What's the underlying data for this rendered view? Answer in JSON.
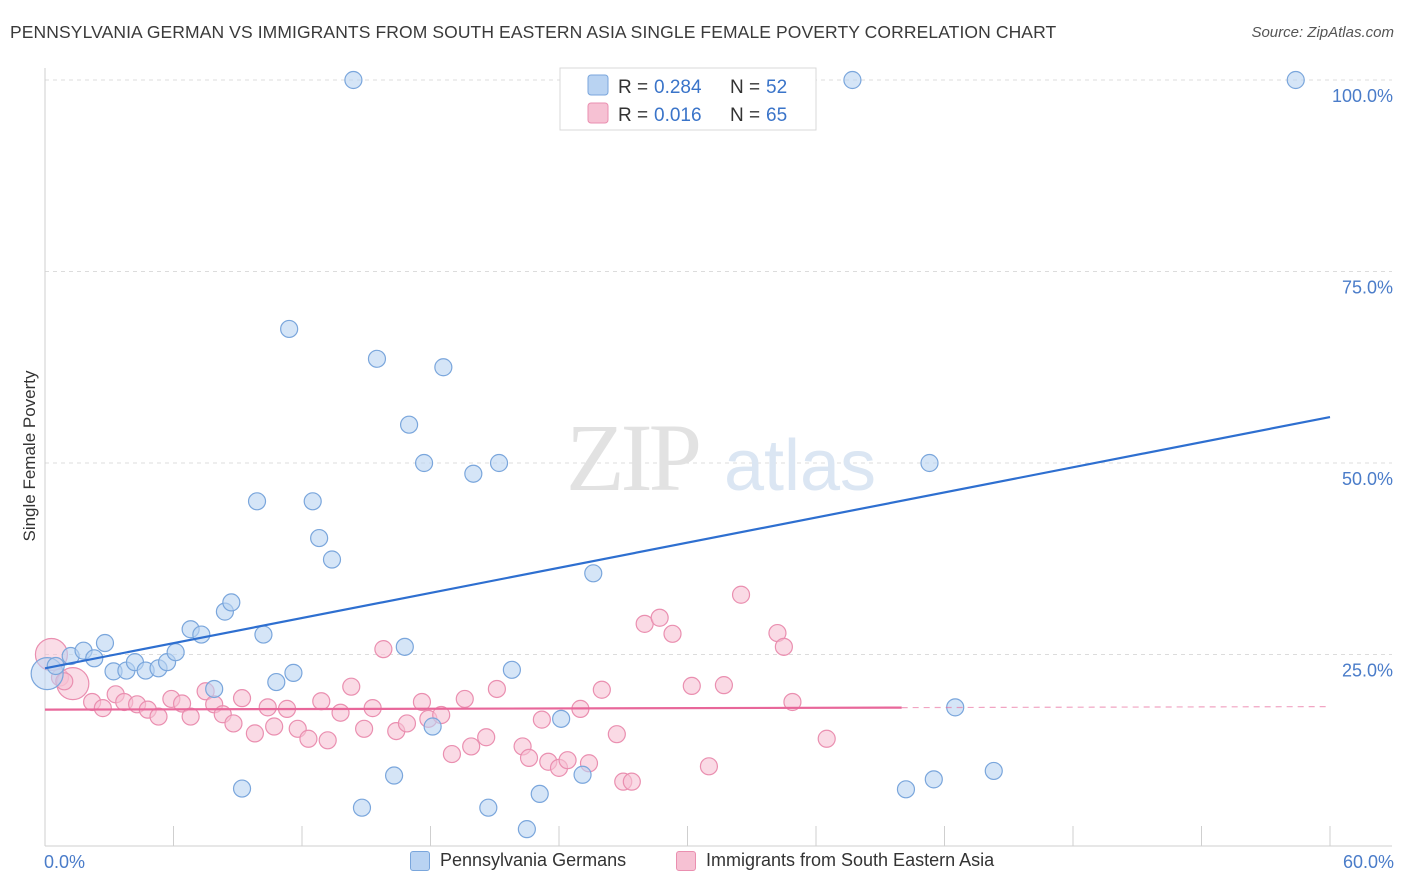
{
  "header": {
    "title": "PENNSYLVANIA GERMAN VS IMMIGRANTS FROM SOUTH EASTERN ASIA SINGLE FEMALE POVERTY CORRELATION CHART",
    "source": "Source: ZipAtlas.com"
  },
  "watermark": {
    "zip": "ZIP",
    "atlas": "atlas"
  },
  "legend": {
    "items": [
      {
        "r_label": "R = ",
        "r_value": "0.284",
        "n_label": "N = ",
        "n_value": "52"
      },
      {
        "r_label": "R = ",
        "r_value": "0.016",
        "n_label": "N = ",
        "n_value": "65"
      }
    ]
  },
  "colors": {
    "blue_fill": "#b9d3f2",
    "blue_stroke": "#7aa6dc",
    "blue_line": "#2e6fd0",
    "pink_fill": "#f6c1d3",
    "pink_stroke": "#ea8fb0",
    "pink_line": "#e8679a",
    "tick_text": "#4a7cc9"
  },
  "chart_data": {
    "type": "scatter",
    "title": "PENNSYLVANIA GERMAN VS IMMIGRANTS FROM SOUTH EASTERN ASIA SINGLE FEMALE POVERTY CORRELATION CHART",
    "xlabel": "",
    "ylabel": "Single Female Poverty",
    "xlim": [
      0,
      60
    ],
    "ylim": [
      0,
      100
    ],
    "x_tick_labels": [
      "0.0%",
      "60.0%"
    ],
    "y_ticks": [
      25,
      50,
      75,
      100
    ],
    "y_tick_labels": [
      "25.0%",
      "50.0%",
      "75.0%",
      "100.0%"
    ],
    "grid": true,
    "legend_placement": "top-center",
    "series": [
      {
        "name": "Pennsylvania Germans",
        "r": 0.284,
        "n": 52,
        "trend": {
          "x": [
            0,
            60
          ],
          "y": [
            23.2,
            56.0
          ],
          "dashed_from": null
        },
        "points": [
          [
            0.1,
            22.5
          ],
          [
            0.5,
            23.5
          ],
          [
            1.2,
            24.8
          ],
          [
            1.8,
            25.5
          ],
          [
            2.3,
            24.5
          ],
          [
            2.8,
            26.5
          ],
          [
            3.2,
            22.8
          ],
          [
            3.8,
            22.9
          ],
          [
            4.2,
            24.0
          ],
          [
            4.7,
            22.9
          ],
          [
            5.3,
            23.2
          ],
          [
            5.7,
            24.0
          ],
          [
            6.1,
            25.3
          ],
          [
            6.8,
            28.3
          ],
          [
            7.3,
            27.6
          ],
          [
            7.9,
            20.5
          ],
          [
            8.4,
            30.6
          ],
          [
            8.7,
            31.8
          ],
          [
            9.2,
            7.5
          ],
          [
            9.9,
            45.0
          ],
          [
            10.2,
            27.6
          ],
          [
            10.8,
            21.4
          ],
          [
            11.4,
            67.5
          ],
          [
            11.6,
            22.6
          ],
          [
            12.5,
            45.0
          ],
          [
            12.8,
            40.2
          ],
          [
            13.4,
            37.4
          ],
          [
            14.4,
            100.0
          ],
          [
            14.8,
            5.0
          ],
          [
            15.5,
            63.6
          ],
          [
            16.3,
            9.2
          ],
          [
            16.8,
            26.0
          ],
          [
            17.0,
            55.0
          ],
          [
            17.7,
            50.0
          ],
          [
            18.1,
            15.6
          ],
          [
            18.6,
            62.5
          ],
          [
            20.0,
            48.6
          ],
          [
            20.7,
            5.0
          ],
          [
            21.2,
            50.0
          ],
          [
            21.8,
            23.0
          ],
          [
            22.5,
            2.2
          ],
          [
            23.1,
            6.8
          ],
          [
            24.1,
            16.6
          ],
          [
            25.1,
            9.3
          ],
          [
            25.6,
            35.6
          ],
          [
            37.7,
            100.0
          ],
          [
            40.2,
            7.4
          ],
          [
            41.5,
            8.7
          ],
          [
            42.5,
            18.1
          ],
          [
            44.3,
            9.8
          ],
          [
            41.3,
            50.0
          ],
          [
            58.4,
            100.0
          ]
        ]
      },
      {
        "name": "Immigrants from South Eastern Asia",
        "r": 0.016,
        "n": 65,
        "trend": {
          "x": [
            0,
            60
          ],
          "y": [
            17.8,
            18.2
          ],
          "dashed_from": 40.0
        },
        "points": [
          [
            0.3,
            25.0
          ],
          [
            0.7,
            22.0
          ],
          [
            1.3,
            21.2
          ],
          [
            2.2,
            18.8
          ],
          [
            2.7,
            18.0
          ],
          [
            3.3,
            19.8
          ],
          [
            3.7,
            18.8
          ],
          [
            4.3,
            18.5
          ],
          [
            4.8,
            17.8
          ],
          [
            5.3,
            16.9
          ],
          [
            5.9,
            19.2
          ],
          [
            6.4,
            18.6
          ],
          [
            6.8,
            16.9
          ],
          [
            7.5,
            20.2
          ],
          [
            7.9,
            18.5
          ],
          [
            8.3,
            17.2
          ],
          [
            8.8,
            16.0
          ],
          [
            9.2,
            19.3
          ],
          [
            9.8,
            14.7
          ],
          [
            10.4,
            18.1
          ],
          [
            10.7,
            15.6
          ],
          [
            11.3,
            17.9
          ],
          [
            11.8,
            15.3
          ],
          [
            12.3,
            14.0
          ],
          [
            12.9,
            18.9
          ],
          [
            13.2,
            13.8
          ],
          [
            13.8,
            17.4
          ],
          [
            14.3,
            20.8
          ],
          [
            14.9,
            15.3
          ],
          [
            15.3,
            18.0
          ],
          [
            15.8,
            25.7
          ],
          [
            16.4,
            15.0
          ],
          [
            16.9,
            16.0
          ],
          [
            17.6,
            18.8
          ],
          [
            17.9,
            16.6
          ],
          [
            18.5,
            17.1
          ],
          [
            19.0,
            12.0
          ],
          [
            19.6,
            19.2
          ],
          [
            19.9,
            13.0
          ],
          [
            20.6,
            14.2
          ],
          [
            21.1,
            20.5
          ],
          [
            22.3,
            13.0
          ],
          [
            22.6,
            11.5
          ],
          [
            23.2,
            16.5
          ],
          [
            23.5,
            11.0
          ],
          [
            24.0,
            10.2
          ],
          [
            24.4,
            11.2
          ],
          [
            25.0,
            17.9
          ],
          [
            25.4,
            10.8
          ],
          [
            26.0,
            20.4
          ],
          [
            26.7,
            14.6
          ],
          [
            27.0,
            8.4
          ],
          [
            27.4,
            8.4
          ],
          [
            28.0,
            29.0
          ],
          [
            28.7,
            29.8
          ],
          [
            29.3,
            27.7
          ],
          [
            30.2,
            20.9
          ],
          [
            31.0,
            10.4
          ],
          [
            31.7,
            21.0
          ],
          [
            32.5,
            32.8
          ],
          [
            34.2,
            27.8
          ],
          [
            34.5,
            26.0
          ],
          [
            34.9,
            18.8
          ],
          [
            36.5,
            14.0
          ],
          [
            0.9,
            21.5
          ]
        ]
      }
    ]
  }
}
